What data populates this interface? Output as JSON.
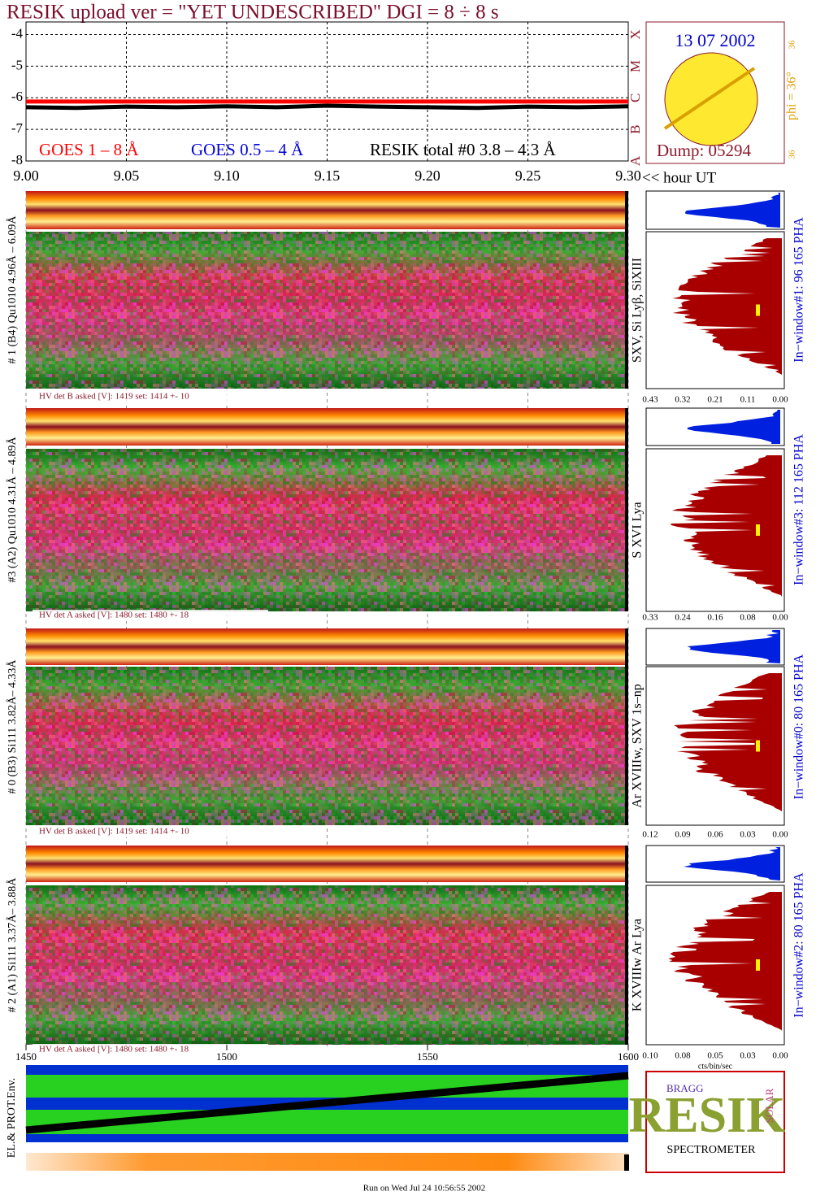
{
  "header": {
    "title": "RESIK upload ver = \"YET UNDESCRIBED\"  DGI =   8 ÷   8 s"
  },
  "chart_data": {
    "type": "line",
    "x": [
      9.0,
      9.025,
      9.05,
      9.075,
      9.1,
      9.125,
      9.15,
      9.175,
      9.2,
      9.225,
      9.25,
      9.275,
      9.3
    ],
    "series": [
      {
        "name": "GOES 1 – 8 Å",
        "color": "#ff0000",
        "values": [
          -6.12,
          -6.12,
          -6.12,
          -6.12,
          -6.12,
          -6.12,
          -6.12,
          -6.12,
          -6.12,
          -6.12,
          -6.12,
          -6.12,
          -6.12
        ]
      },
      {
        "name": "GOES 0.5 – 4 Å",
        "color": "#0000dd",
        "values": [
          null,
          null,
          null,
          null,
          null,
          null,
          null,
          null,
          null,
          null,
          null,
          null,
          null
        ]
      },
      {
        "name": "RESIK total #0  3.8 – 4.3 Å",
        "color": "#000000",
        "values": [
          -6.3,
          -6.32,
          -6.28,
          -6.3,
          -6.27,
          -6.3,
          -6.25,
          -6.28,
          -6.3,
          -6.32,
          -6.28,
          -6.3,
          -6.27
        ]
      }
    ],
    "xlim": [
      9.0,
      9.3
    ],
    "xticks": [
      {
        "value": 9.0,
        "label": "9.00"
      },
      {
        "value": 9.05,
        "label": "9.05"
      },
      {
        "value": 9.1,
        "label": "9.10"
      },
      {
        "value": 9.15,
        "label": "9.15"
      },
      {
        "value": 9.2,
        "label": "9.20"
      },
      {
        "value": 9.25,
        "label": "9.25"
      },
      {
        "value": 9.3,
        "label": "9.30"
      }
    ],
    "xlabel": "<< hour UT",
    "ylim": [
      -8,
      -3.6
    ],
    "yticks": [
      -4,
      -5,
      -6,
      -7,
      -8
    ],
    "class_labels": [
      "X",
      "M",
      "C",
      "B",
      "A"
    ],
    "grid": true
  },
  "sun_box": {
    "date": "13 07 2002",
    "dump": "Dump: 05294",
    "phi": "phi = 36°",
    "phi_small": [
      "36",
      "36"
    ]
  },
  "panels": [
    {
      "label": "# 1 (B4) Qu1010 4.96Å – 6.09Å",
      "lines": "SXV, Si Lyβ, SiXIII",
      "hv": "HV det B asked [V]:  1419 set:  1414 +-   10",
      "pha": "In−window#1:   96 165  PHA",
      "ticks": [
        "0.43",
        "0.32",
        "0.21",
        "0.11",
        "0.00"
      ]
    },
    {
      "label": "#3 (A2) Qu1010  4.31Å – 4.89Å",
      "lines": "S XVI Lya",
      "hv": "HV det A asked [V]:  1480 set:  1480 +-   18",
      "pha": "In−window#3:  112 165  PHA",
      "ticks": [
        "0.33",
        "0.24",
        "0.16",
        "0.08",
        "0.00"
      ]
    },
    {
      "label": "# 0 (B3) Si111  3.82Å– 4.33Å",
      "lines": "Ar XVIIIw,  SXV 1s–np",
      "hv": "HV det B asked [V]:  1419 set:  1414 +-   10",
      "pha": "In−window#0:   80 165  PHA",
      "ticks": [
        "0.12",
        "0.09",
        "0.06",
        "0.03",
        "0.00"
      ]
    },
    {
      "label": "# 2 (A1) Si111  3.37Å– 3.88Å",
      "lines": "K XVIIIw  Ar Lya",
      "hv": "HV det A asked [V]:  1480 set:  1480 +-   18",
      "pha": "In−window#2:   80 165  PHA",
      "ticks": [
        "0.10",
        "0.08",
        "0.05",
        "0.03",
        "0.00"
      ]
    }
  ],
  "hist_unit": "cts/bin/sec",
  "env_plot": {
    "ylabel": "EL.& PROT.Env.",
    "xlim": [
      1450,
      1600
    ],
    "xticks": [
      1450,
      1500,
      1550,
      1600
    ]
  },
  "logo": {
    "main": "RESIK",
    "top": "BRAGG",
    "side": "SOLAR",
    "bottom": "SPECTROMETER"
  },
  "footer": "Run on Wed Jul 24 10:56:55 2002"
}
